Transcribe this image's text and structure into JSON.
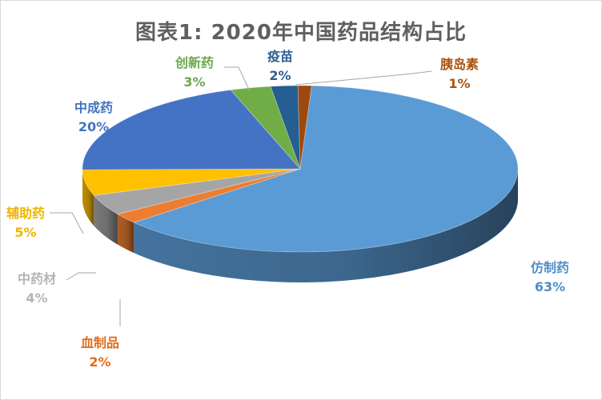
{
  "chart_data": {
    "type": "pie",
    "title": "图表1: 2020年中国药品结构占比",
    "slices": [
      {
        "name": "仿制药",
        "value": 63,
        "label": "63%",
        "color": "#5b9bd5"
      },
      {
        "name": "血制品",
        "value": 2,
        "label": "2%",
        "color": "#ed7d31"
      },
      {
        "name": "中药材",
        "value": 4,
        "label": "4%",
        "color": "#a5a5a5"
      },
      {
        "name": "辅助药",
        "value": 5,
        "label": "5%",
        "color": "#ffc000"
      },
      {
        "name": "中成药",
        "value": 20,
        "label": "20%",
        "color": "#4472c4"
      },
      {
        "name": "创新药",
        "value": 3,
        "label": "3%",
        "color": "#70ad47"
      },
      {
        "name": "疫苗",
        "value": 2,
        "label": "2%",
        "color": "#255e91"
      },
      {
        "name": "胰岛素",
        "value": 1,
        "label": "1%",
        "color": "#9e480e"
      }
    ]
  }
}
